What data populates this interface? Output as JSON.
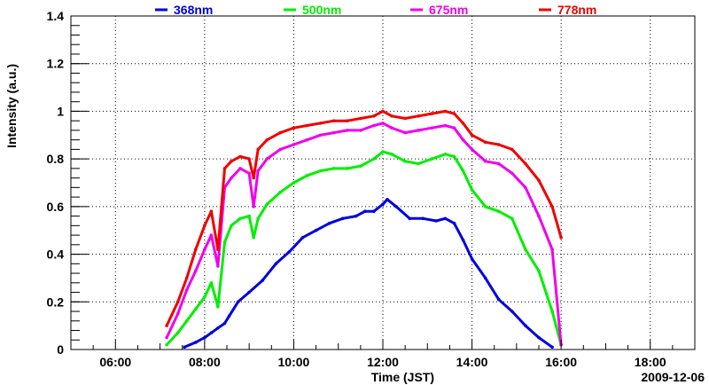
{
  "chart_data": {
    "type": "line",
    "xlabel": "Time (JST)",
    "ylabel": "Intensity (a.u.)",
    "date_label": "2009-12-06",
    "xlim": [
      5.0,
      19.0
    ],
    "ylim": [
      0,
      1.4
    ],
    "x_ticks": [
      {
        "value": 6,
        "label": "06:00"
      },
      {
        "value": 8,
        "label": "08:00"
      },
      {
        "value": 10,
        "label": "10:00"
      },
      {
        "value": 12,
        "label": "12:00"
      },
      {
        "value": 14,
        "label": "14:00"
      },
      {
        "value": 16,
        "label": "16:00"
      },
      {
        "value": 18,
        "label": "18:00"
      }
    ],
    "y_ticks": [
      {
        "value": 0,
        "label": "0"
      },
      {
        "value": 0.2,
        "label": "0.2"
      },
      {
        "value": 0.4,
        "label": "0.4"
      },
      {
        "value": 0.6,
        "label": "0.6"
      },
      {
        "value": 0.8,
        "label": "0.8"
      },
      {
        "value": 1,
        "label": "1"
      },
      {
        "value": 1.2,
        "label": "1.2"
      },
      {
        "value": 1.4,
        "label": "1.4"
      }
    ],
    "grid": true,
    "legend": "top",
    "series": [
      {
        "name": "368nm",
        "color": "#0000dd",
        "x": [
          7.55,
          7.8,
          8.0,
          8.15,
          8.3,
          8.45,
          8.55,
          8.75,
          9.0,
          9.3,
          9.6,
          9.9,
          10.2,
          10.5,
          10.8,
          11.1,
          11.4,
          11.6,
          11.8,
          12.0,
          12.1,
          12.3,
          12.6,
          12.9,
          13.2,
          13.4,
          13.6,
          13.8,
          14.0,
          14.3,
          14.6,
          14.9,
          15.2,
          15.5,
          15.8
        ],
        "y": [
          0.01,
          0.03,
          0.05,
          0.07,
          0.09,
          0.11,
          0.14,
          0.2,
          0.24,
          0.29,
          0.36,
          0.41,
          0.47,
          0.5,
          0.53,
          0.55,
          0.56,
          0.58,
          0.58,
          0.61,
          0.63,
          0.6,
          0.55,
          0.55,
          0.54,
          0.55,
          0.53,
          0.46,
          0.38,
          0.3,
          0.21,
          0.16,
          0.1,
          0.05,
          0.01
        ]
      },
      {
        "name": "500nm",
        "color": "#00ee00",
        "x": [
          7.15,
          7.4,
          7.6,
          7.8,
          8.0,
          8.15,
          8.3,
          8.45,
          8.6,
          8.8,
          9.0,
          9.1,
          9.2,
          9.4,
          9.7,
          10.0,
          10.3,
          10.6,
          10.9,
          11.2,
          11.5,
          11.8,
          12.0,
          12.2,
          12.5,
          12.8,
          13.1,
          13.4,
          13.6,
          13.8,
          14.0,
          14.3,
          14.6,
          14.9,
          15.2,
          15.5,
          15.8,
          16.0
        ],
        "y": [
          0.02,
          0.07,
          0.12,
          0.17,
          0.22,
          0.28,
          0.18,
          0.45,
          0.52,
          0.55,
          0.56,
          0.47,
          0.55,
          0.61,
          0.66,
          0.7,
          0.73,
          0.75,
          0.76,
          0.76,
          0.77,
          0.8,
          0.83,
          0.82,
          0.79,
          0.78,
          0.8,
          0.82,
          0.81,
          0.75,
          0.67,
          0.6,
          0.58,
          0.55,
          0.42,
          0.33,
          0.16,
          0.02
        ]
      },
      {
        "name": "675nm",
        "color": "#ee00ee",
        "x": [
          7.15,
          7.4,
          7.6,
          7.8,
          8.0,
          8.15,
          8.3,
          8.45,
          8.6,
          8.8,
          9.0,
          9.1,
          9.2,
          9.4,
          9.7,
          10.0,
          10.3,
          10.6,
          10.9,
          11.2,
          11.5,
          11.8,
          12.0,
          12.2,
          12.5,
          12.8,
          13.1,
          13.4,
          13.6,
          13.8,
          14.0,
          14.3,
          14.6,
          14.9,
          15.2,
          15.5,
          15.8,
          16.0
        ],
        "y": [
          0.05,
          0.15,
          0.25,
          0.33,
          0.42,
          0.48,
          0.35,
          0.68,
          0.72,
          0.76,
          0.74,
          0.6,
          0.75,
          0.8,
          0.84,
          0.86,
          0.88,
          0.9,
          0.91,
          0.92,
          0.92,
          0.94,
          0.95,
          0.93,
          0.91,
          0.92,
          0.93,
          0.94,
          0.93,
          0.88,
          0.84,
          0.79,
          0.78,
          0.74,
          0.68,
          0.56,
          0.42,
          0.02
        ]
      },
      {
        "name": "778nm",
        "color": "#ee0000",
        "x": [
          7.15,
          7.4,
          7.6,
          7.8,
          8.0,
          8.15,
          8.3,
          8.45,
          8.6,
          8.8,
          9.0,
          9.1,
          9.2,
          9.4,
          9.7,
          10.0,
          10.3,
          10.6,
          10.9,
          11.2,
          11.5,
          11.8,
          12.0,
          12.2,
          12.5,
          12.8,
          13.1,
          13.4,
          13.6,
          13.8,
          14.0,
          14.3,
          14.6,
          14.9,
          15.2,
          15.5,
          15.8,
          16.0
        ],
        "y": [
          0.1,
          0.2,
          0.3,
          0.42,
          0.52,
          0.58,
          0.42,
          0.76,
          0.79,
          0.81,
          0.8,
          0.72,
          0.84,
          0.88,
          0.91,
          0.93,
          0.94,
          0.95,
          0.96,
          0.96,
          0.97,
          0.98,
          1.0,
          0.98,
          0.97,
          0.98,
          0.99,
          1.0,
          0.99,
          0.95,
          0.9,
          0.87,
          0.86,
          0.84,
          0.78,
          0.71,
          0.6,
          0.47
        ]
      }
    ]
  }
}
